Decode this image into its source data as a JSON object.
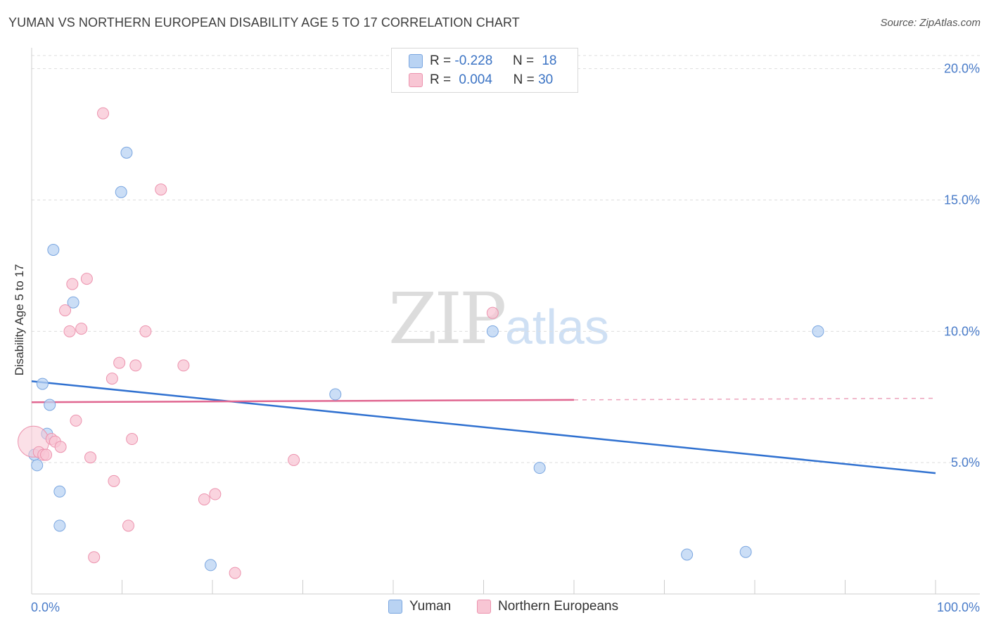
{
  "title": "YUMAN VS NORTHERN EUROPEAN DISABILITY AGE 5 TO 17 CORRELATION CHART",
  "source": "Source: ZipAtlas.com",
  "watermark": {
    "zip": "ZIP",
    "atlas": "atlas"
  },
  "legend": {
    "r_label": "R =",
    "n_label": "N =",
    "rows": [
      {
        "r": "-0.228",
        "n": "18"
      },
      {
        "r": "0.004",
        "n": "30"
      }
    ]
  },
  "colors": {
    "yuman_fill": "#b9d3f3",
    "yuman_stroke": "#7aa6e0",
    "yuman_line": "#3071d0",
    "ne_fill": "#f8c6d4",
    "ne_stroke": "#ec93ae",
    "ne_line": "#e06690",
    "tick": "#4a7cc9",
    "grid": "#dddddd"
  },
  "chart_data": {
    "type": "scatter",
    "title": "YUMAN VS NORTHERN EUROPEAN DISABILITY AGE 5 TO 17 CORRELATION CHART",
    "xlabel": "",
    "ylabel": "Disability Age 5 to 17",
    "xlim": [
      0,
      100
    ],
    "ylim": [
      0,
      20.5
    ],
    "x_tick_labels": [
      "0.0%",
      "100.0%"
    ],
    "y_ticks": [
      5,
      10,
      15,
      20
    ],
    "y_tick_labels": [
      "5.0%",
      "10.0%",
      "15.0%",
      "20.0%"
    ],
    "legend_position": "top-center",
    "series": [
      {
        "name": "Yuman",
        "r": -0.228,
        "n": 18,
        "trend": {
          "x": [
            0,
            100
          ],
          "y": [
            8.1,
            4.6
          ],
          "dashed_from": null
        },
        "points": [
          {
            "x": 0.3,
            "y": 5.3
          },
          {
            "x": 0.6,
            "y": 4.9
          },
          {
            "x": 1.2,
            "y": 8.0
          },
          {
            "x": 1.7,
            "y": 6.1
          },
          {
            "x": 2.0,
            "y": 7.2
          },
          {
            "x": 2.4,
            "y": 13.1
          },
          {
            "x": 3.1,
            "y": 3.9
          },
          {
            "x": 3.1,
            "y": 2.6
          },
          {
            "x": 4.6,
            "y": 11.1
          },
          {
            "x": 9.9,
            "y": 15.3
          },
          {
            "x": 10.5,
            "y": 16.8
          },
          {
            "x": 19.8,
            "y": 1.1
          },
          {
            "x": 33.6,
            "y": 7.6
          },
          {
            "x": 51.0,
            "y": 10.0
          },
          {
            "x": 56.2,
            "y": 4.8
          },
          {
            "x": 72.5,
            "y": 1.5
          },
          {
            "x": 79.0,
            "y": 1.6
          },
          {
            "x": 87.0,
            "y": 10.0
          }
        ]
      },
      {
        "name": "Northern Europeans",
        "r": 0.004,
        "n": 30,
        "trend": {
          "x": [
            0,
            100
          ],
          "y": [
            7.3,
            7.45
          ],
          "dashed_from": 60
        },
        "points": [
          {
            "x": 0.2,
            "y": 5.8,
            "size": "large"
          },
          {
            "x": 0.8,
            "y": 5.4
          },
          {
            "x": 1.3,
            "y": 5.3
          },
          {
            "x": 1.6,
            "y": 5.3
          },
          {
            "x": 2.2,
            "y": 5.9
          },
          {
            "x": 2.6,
            "y": 5.8
          },
          {
            "x": 3.2,
            "y": 5.6
          },
          {
            "x": 3.7,
            "y": 10.8
          },
          {
            "x": 4.2,
            "y": 10.0
          },
          {
            "x": 4.5,
            "y": 11.8
          },
          {
            "x": 4.9,
            "y": 6.6
          },
          {
            "x": 5.5,
            "y": 10.1
          },
          {
            "x": 6.1,
            "y": 12.0
          },
          {
            "x": 6.5,
            "y": 5.2
          },
          {
            "x": 6.9,
            "y": 1.4
          },
          {
            "x": 7.9,
            "y": 18.3
          },
          {
            "x": 8.9,
            "y": 8.2
          },
          {
            "x": 9.1,
            "y": 4.3
          },
          {
            "x": 9.7,
            "y": 8.8
          },
          {
            "x": 10.7,
            "y": 2.6
          },
          {
            "x": 11.1,
            "y": 5.9
          },
          {
            "x": 11.5,
            "y": 8.7
          },
          {
            "x": 12.6,
            "y": 10.0
          },
          {
            "x": 14.3,
            "y": 15.4
          },
          {
            "x": 16.8,
            "y": 8.7
          },
          {
            "x": 19.1,
            "y": 3.6
          },
          {
            "x": 20.3,
            "y": 3.8
          },
          {
            "x": 22.5,
            "y": 0.8
          },
          {
            "x": 29.0,
            "y": 5.1
          },
          {
            "x": 51.0,
            "y": 10.7
          }
        ]
      }
    ]
  },
  "bottom_legend": [
    "Yuman",
    "Northern Europeans"
  ]
}
